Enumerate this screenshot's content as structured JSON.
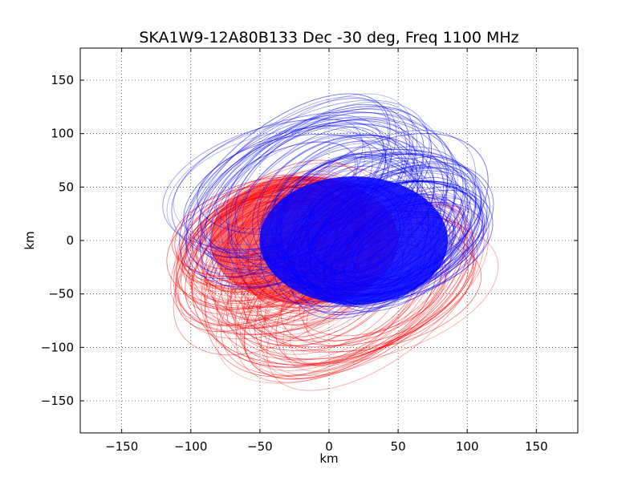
{
  "chart_data": {
    "type": "scatter",
    "title": "SKA1W9-12A80B133 Dec -30 deg, Freq 1100 MHz",
    "xlabel": "km",
    "ylabel": "km",
    "xlim": [
      -180,
      180
    ],
    "ylim": [
      -180,
      180
    ],
    "xticks": [
      -150,
      -100,
      -50,
      0,
      50,
      100,
      150
    ],
    "yticks": [
      -150,
      -100,
      -50,
      0,
      50,
      100,
      150
    ],
    "xtick_labels": [
      "−150",
      "−100",
      "−50",
      "0",
      "50",
      "100",
      "150"
    ],
    "ytick_labels": [
      "−150",
      "−100",
      "−50",
      "0",
      "50",
      "100",
      "150"
    ],
    "grid": true,
    "grid_style": "dotted",
    "series": [
      {
        "color": "#ff0000",
        "track_centers": [
          [
            -45,
            0
          ],
          [
            -40,
            -5
          ],
          [
            -30,
            -20
          ],
          [
            -10,
            -35
          ],
          [
            15,
            -45
          ],
          [
            30,
            -50
          ],
          [
            -55,
            10
          ],
          [
            -20,
            -10
          ]
        ],
        "track_radii": [
          [
            75,
            55
          ],
          [
            85,
            60
          ],
          [
            95,
            70
          ],
          [
            90,
            80
          ],
          [
            105,
            70
          ],
          [
            95,
            60
          ],
          [
            65,
            45
          ],
          [
            60,
            70
          ]
        ]
      },
      {
        "color": "#0000ff",
        "track_centers": [
          [
            45,
            0
          ],
          [
            40,
            5
          ],
          [
            30,
            20
          ],
          [
            10,
            35
          ],
          [
            -15,
            45
          ],
          [
            -30,
            50
          ],
          [
            55,
            -10
          ],
          [
            20,
            10
          ]
        ],
        "track_radii": [
          [
            75,
            55
          ],
          [
            85,
            60
          ],
          [
            95,
            70
          ],
          [
            90,
            80
          ],
          [
            105,
            70
          ],
          [
            95,
            60
          ],
          [
            65,
            45
          ],
          [
            60,
            70
          ]
        ]
      }
    ]
  }
}
